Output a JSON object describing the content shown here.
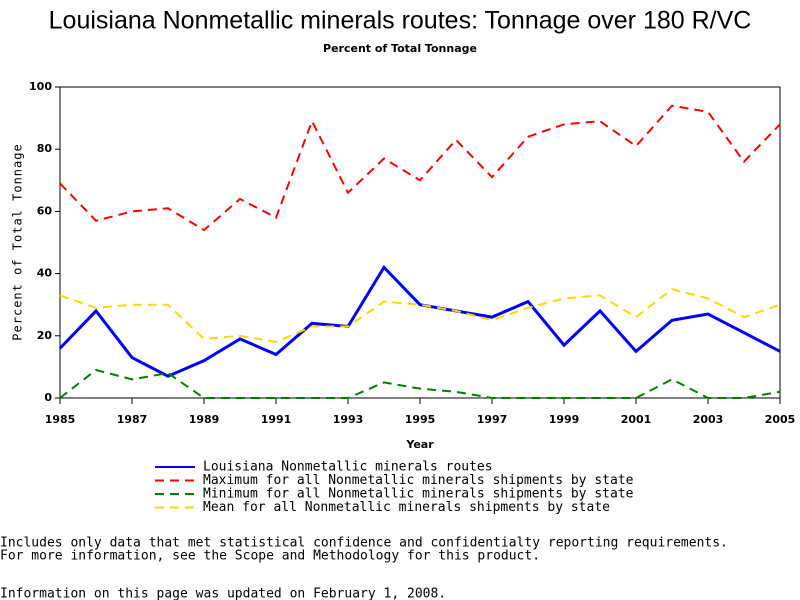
{
  "chart_data": {
    "type": "line",
    "title": "Louisiana Nonmetallic minerals routes: Tonnage over 180 R/VC",
    "subtitle": "Percent of Total Tonnage",
    "x_label": "Year",
    "y_label": "Percent of Total Tonnage",
    "x": [
      1985,
      1986,
      1987,
      1988,
      1989,
      1990,
      1991,
      1992,
      1993,
      1994,
      1995,
      1996,
      1997,
      1998,
      1999,
      2000,
      2001,
      2002,
      2003,
      2004,
      2005
    ],
    "series": [
      {
        "name": "Louisiana Nonmetallic minerals routes",
        "color": "#0000ff",
        "dashed": false,
        "linewidth": 3,
        "values": [
          16,
          28,
          13,
          7,
          12,
          19,
          14,
          24,
          23,
          42,
          30,
          28,
          26,
          31,
          17,
          28,
          15,
          25,
          27,
          21,
          15
        ]
      },
      {
        "name": "Maximum for all Nonmetallic minerals shipments by state",
        "color": "#ff0000",
        "dashed": true,
        "linewidth": 2,
        "values": [
          69,
          57,
          60,
          61,
          54,
          64,
          58,
          89,
          66,
          77,
          70,
          83,
          71,
          84,
          88,
          89,
          81,
          94,
          92,
          76,
          88
        ]
      },
      {
        "name": "Minimum for all Nonmetallic minerals shipments by state",
        "color": "#008000",
        "dashed": true,
        "linewidth": 2,
        "values": [
          0,
          9,
          6,
          8,
          0,
          0,
          0,
          0,
          0,
          5,
          3,
          2,
          0,
          0,
          0,
          0,
          0,
          6,
          0,
          0,
          2
        ]
      },
      {
        "name": "Mean for all Nonmetallic minerals shipments by state",
        "color": "#ffd700",
        "dashed": true,
        "linewidth": 2,
        "values": [
          33,
          29,
          30,
          30,
          19,
          20,
          18,
          23,
          23,
          31,
          30,
          28,
          25,
          29,
          32,
          33,
          26,
          35,
          32,
          26,
          30
        ]
      }
    ],
    "xlim": [
      1985,
      2005
    ],
    "xticks": [
      1985,
      1987,
      1989,
      1991,
      1993,
      1995,
      1997,
      1999,
      2001,
      2003,
      2005
    ],
    "ylim": [
      0,
      100
    ],
    "yticks": [
      0,
      20,
      40,
      60,
      80,
      100
    ],
    "notes": [
      "Includes only data that met statistical confidence and confidentialty reporting requirements.",
      "For more information, see the Scope and Methodology for this product.",
      "Information on this page was updated on February 1, 2008."
    ]
  }
}
